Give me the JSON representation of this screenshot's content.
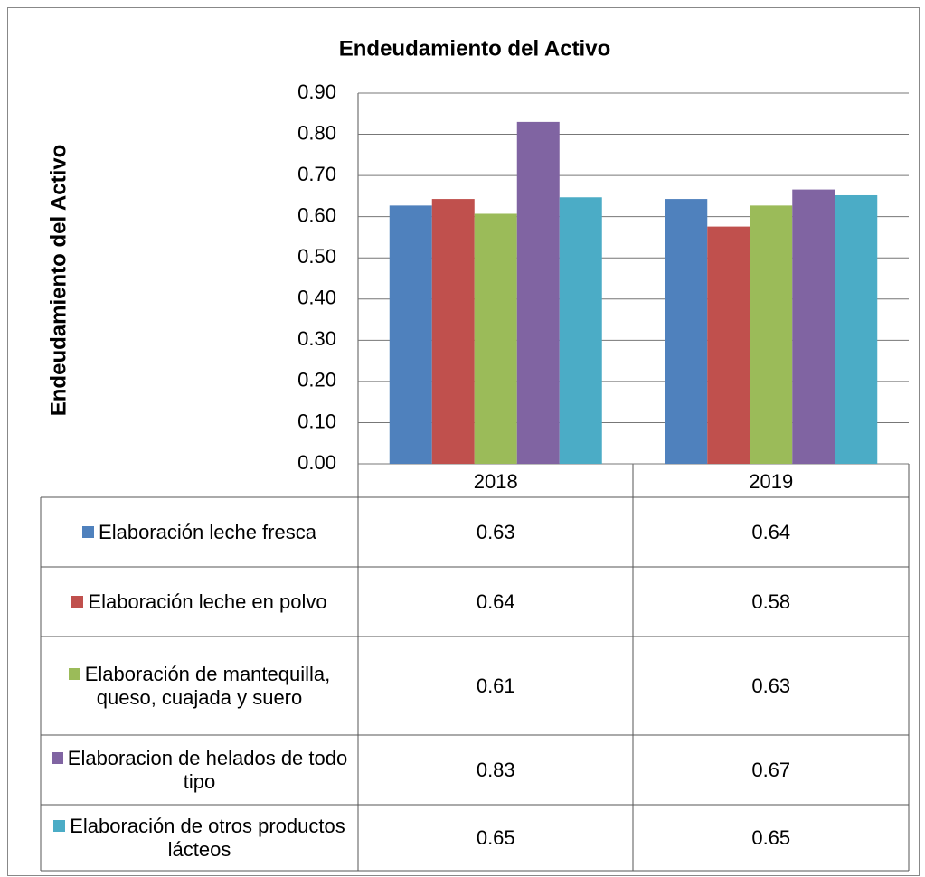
{
  "chart_data": {
    "type": "bar",
    "title": "Endeudamiento del Activo",
    "y_label": "Endeudamiento del Activo",
    "categories": [
      "2018",
      "2019"
    ],
    "series": [
      {
        "name": "Elaboración leche fresca",
        "color": "#4f81bd",
        "values": [
          0.627,
          0.643
        ],
        "value_labels": [
          "0.63",
          "0.64"
        ]
      },
      {
        "name": "Elaboración leche en polvo",
        "color": "#c0504d",
        "values": [
          0.643,
          0.576
        ],
        "value_labels": [
          "0.64",
          "0.58"
        ]
      },
      {
        "name": "Elaboración de mantequilla, queso, cuajada y suero",
        "color": "#9bbb59",
        "values": [
          0.607,
          0.627
        ],
        "value_labels": [
          "0.61",
          "0.63"
        ]
      },
      {
        "name": "Elaboracion de helados de todo tipo",
        "color": "#8064a2",
        "values": [
          0.83,
          0.666
        ],
        "value_labels": [
          "0.83",
          "0.67"
        ]
      },
      {
        "name": "Elaboración de otros productos lácteos",
        "color": "#4bacc6",
        "values": [
          0.647,
          0.652
        ],
        "value_labels": [
          "0.65",
          "0.65"
        ]
      }
    ],
    "ylim": [
      0,
      0.9
    ],
    "yticks": [
      {
        "value": 0,
        "label": "0.00"
      },
      {
        "value": 0.1,
        "label": "0.10"
      },
      {
        "value": 0.2,
        "label": "0.20"
      },
      {
        "value": 0.3,
        "label": "0.30"
      },
      {
        "value": 0.4,
        "label": "0.40"
      },
      {
        "value": 0.5,
        "label": "0.50"
      },
      {
        "value": 0.6,
        "label": "0.60"
      },
      {
        "value": 0.7,
        "label": "0.70"
      },
      {
        "value": 0.8,
        "label": "0.80"
      },
      {
        "value": 0.9,
        "label": "0.90"
      }
    ],
    "grid": true
  }
}
